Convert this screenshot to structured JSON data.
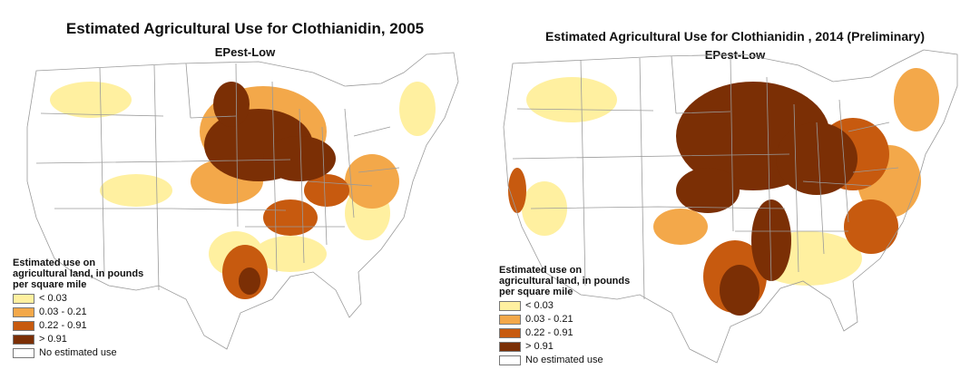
{
  "colors": {
    "lt_003": "#fff0a0",
    "c003_021": "#f3a84a",
    "c022_091": "#c75a0f",
    "gt_091": "#7b2f05",
    "none": "#ffffff",
    "state_lines": "#9a9a9a"
  },
  "maps": [
    {
      "title": "Estimated Agricultural Use for Clothianidin, 2005",
      "subtitle": "EPest-Low",
      "legend": {
        "title": "Estimated use on agricultural land, in pounds per square mile",
        "items": [
          {
            "label": "< 0.03",
            "color": "#fff0a0"
          },
          {
            "label": "0.03 - 0.21",
            "color": "#f3a84a"
          },
          {
            "label": "0.22 - 0.91",
            "color": "#c75a0f"
          },
          {
            "label": "> 0.91",
            "color": "#7b2f05"
          },
          {
            "label": "No estimated use",
            "color": "#ffffff"
          }
        ]
      }
    },
    {
      "title": "Estimated Agricultural Use for Clothianidin , 2014 (Preliminary)",
      "subtitle": "EPest-Low",
      "legend": {
        "title": "Estimated use on agricultural land, in pounds per square mile",
        "items": [
          {
            "label": "< 0.03",
            "color": "#fff0a0"
          },
          {
            "label": "0.03 - 0.21",
            "color": "#f3a84a"
          },
          {
            "label": "0.22 - 0.91",
            "color": "#c75a0f"
          },
          {
            "label": "> 0.91",
            "color": "#7b2f05"
          },
          {
            "label": "No estimated use",
            "color": "#ffffff"
          }
        ]
      }
    }
  ]
}
